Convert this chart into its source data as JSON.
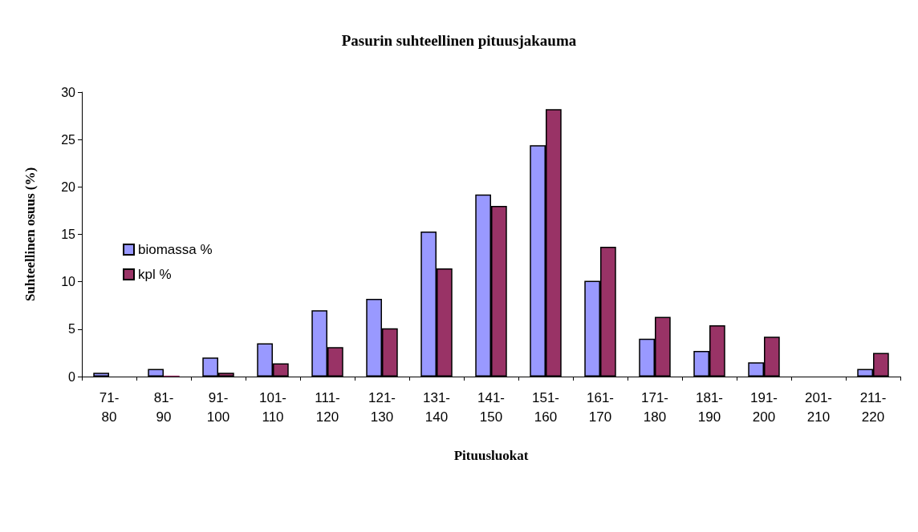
{
  "chart_data": {
    "type": "bar",
    "title": "Pasurin suhteellinen pituusjakauma",
    "xlabel": "Pituusluokat",
    "ylabel": "Suhteellinen osuus (%)",
    "categories": [
      "71-\n80",
      "81-\n90",
      "91-\n100",
      "101-\n110",
      "111-\n120",
      "121-\n130",
      "131-\n140",
      "141-\n150",
      "151-\n160",
      "161-\n170",
      "171-\n180",
      "181-\n190",
      "191-\n200",
      "201-\n210",
      "211-\n220"
    ],
    "series": [
      {
        "name": "biomassa %",
        "color": "#9999ff",
        "values": [
          0.4,
          0.8,
          2.0,
          3.5,
          7.0,
          8.2,
          15.3,
          19.2,
          24.4,
          10.1,
          4.0,
          2.7,
          1.5,
          0,
          0.8
        ]
      },
      {
        "name": "kpl %",
        "color": "#993366",
        "values": [
          0,
          0.1,
          0.4,
          1.4,
          3.1,
          5.1,
          11.4,
          18.0,
          28.2,
          13.7,
          6.3,
          5.4,
          4.2,
          0,
          2.5
        ]
      }
    ],
    "ylim": [
      0,
      30
    ],
    "yticks": [
      0,
      5,
      10,
      15,
      20,
      25,
      30
    ],
    "grid": false,
    "legend": "left"
  }
}
